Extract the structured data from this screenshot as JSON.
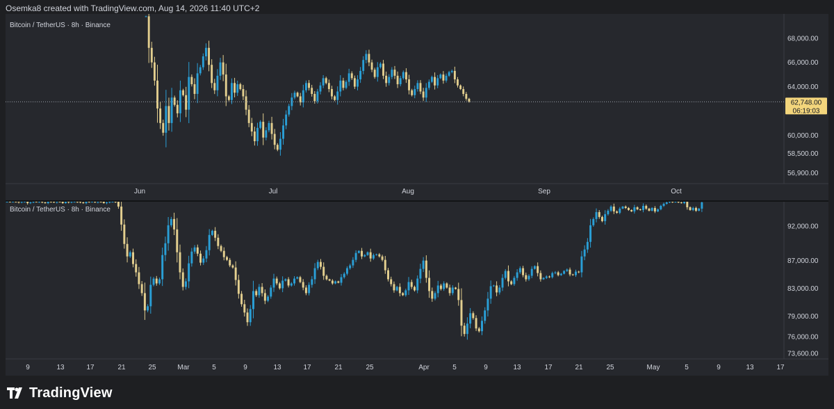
{
  "header": {
    "credit": "Osemka8 created with TradingView.com, Aug 14, 2026 11:40 UTC+2"
  },
  "footer": {
    "brand": "TradingView",
    "logo_icon": "tradingview-logo-icon"
  },
  "colors": {
    "up": "#2a9fd6",
    "down": "#e3cf8f",
    "bg": "#26282d",
    "axis_text": "#d1d4dc",
    "price_tag": "#f3d57c"
  },
  "chart_data": [
    {
      "type": "candlestick",
      "title": "Bitcoin / TetherUS · 8h · Binance",
      "y_ticks": [
        "68,000.00",
        "66,000.00",
        "64,000.00",
        "60,000.00",
        "58,500.00",
        "56,900.00"
      ],
      "y_tick_values": [
        68000,
        66000,
        64000,
        60000,
        58500,
        56900
      ],
      "ylim": [
        56000,
        70000
      ],
      "x_ticks": [
        "Jun",
        "Jul",
        "Aug",
        "Sep",
        "Oct"
      ],
      "last_price": "62,748.00",
      "countdown": "06:19:03",
      "last_value": 62748,
      "closes": [
        69800,
        67200,
        66000,
        64500,
        62200,
        61000,
        60200,
        62400,
        61000,
        63100,
        62500,
        61800,
        63700,
        63300,
        62100,
        64800,
        64200,
        63400,
        65100,
        65600,
        66500,
        67200,
        65800,
        64300,
        63700,
        64900,
        66000,
        65000,
        63200,
        62900,
        64300,
        63500,
        64200,
        63800,
        63200,
        62100,
        61000,
        60300,
        59500,
        60600,
        61100,
        59800,
        60400,
        61000,
        60100,
        59200,
        58800,
        59700,
        60800,
        61700,
        62400,
        63100,
        63500,
        63200,
        62700,
        63700,
        64300,
        63900,
        63400,
        62800,
        63600,
        64100,
        64700,
        64300,
        63800,
        63200,
        62900,
        63600,
        64500,
        63900,
        64400,
        65100,
        64700,
        64000,
        64600,
        65300,
        66200,
        66700,
        66000,
        65400,
        64800,
        65600,
        65900,
        64900,
        64300,
        64800,
        65400,
        64900,
        64200,
        64700,
        65200,
        64600,
        63700,
        63300,
        63800,
        64300,
        63600,
        63100,
        63900,
        64400,
        64800,
        64100,
        64700,
        65000,
        64500,
        64900,
        65200,
        65300,
        64600,
        64100,
        63800,
        63400,
        63000,
        62748
      ]
    },
    {
      "type": "candlestick",
      "title": "Bitcoin / TetherUS · 8h · Binance",
      "y_ticks": [
        "92,000.00",
        "87,000.00",
        "83,000.00",
        "79,000.00",
        "76,000.00",
        "73,600.00"
      ],
      "y_tick_values": [
        92000,
        87000,
        83000,
        79000,
        76000,
        73600
      ],
      "ylim": [
        72800,
        95500
      ],
      "x_ticks": [
        "9",
        "13",
        "17",
        "21",
        "25",
        "Mar",
        "5",
        "9",
        "13",
        "17",
        "21",
        "25",
        "Apr",
        "5",
        "9",
        "13",
        "17",
        "21",
        "25",
        "May",
        "5",
        "9",
        "13",
        "17"
      ],
      "closes": [
        95800,
        95700,
        95900,
        95500,
        95400,
        95600,
        95700,
        95300,
        95400,
        95600,
        95500,
        95700,
        95400,
        95300,
        95600,
        95500,
        95400,
        95700,
        95600,
        95300,
        95500,
        95400,
        95600,
        95700,
        95500,
        95400,
        95300,
        95600,
        95500,
        95700,
        95400,
        95600,
        95500,
        95300,
        95400,
        95600,
        95700,
        95500,
        94800,
        92200,
        89400,
        87600,
        88200,
        86500,
        85300,
        83600,
        82300,
        79800,
        80400,
        83500,
        84400,
        83700,
        84300,
        87800,
        89500,
        92100,
        93000,
        91500,
        88200,
        85300,
        83200,
        84000,
        86600,
        88300,
        88900,
        88000,
        86700,
        87300,
        88500,
        90700,
        91300,
        90300,
        89100,
        88400,
        87500,
        87100,
        86300,
        86000,
        84200,
        82200,
        80700,
        79500,
        78100,
        80000,
        82600,
        82000,
        83200,
        82300,
        81200,
        81800,
        83100,
        84400,
        83700,
        83000,
        84100,
        84300,
        83400,
        83700,
        84400,
        84600,
        83900,
        83100,
        82300,
        83500,
        84300,
        85900,
        86800,
        86100,
        84800,
        84300,
        84100,
        83700,
        84000,
        83800,
        84600,
        85100,
        85900,
        86300,
        87100,
        88100,
        88400,
        87600,
        87800,
        88200,
        87300,
        87800,
        87900,
        87600,
        87100,
        85600,
        84300,
        83600,
        82700,
        83200,
        82300,
        82000,
        82700,
        83900,
        83200,
        82700,
        84400,
        85800,
        87000,
        84500,
        82600,
        81500,
        82300,
        83400,
        82900,
        83700,
        83100,
        82300,
        83100,
        82900,
        81300,
        77600,
        76400,
        77900,
        79400,
        78700,
        77200,
        76800,
        78300,
        79800,
        81500,
        83300,
        83400,
        82400,
        83100,
        84500,
        85500,
        84000,
        83600,
        84500,
        85300,
        85900,
        84900,
        84300,
        84800,
        85800,
        86200,
        85200,
        84300,
        84500,
        84700,
        84600,
        85200,
        85300,
        84900,
        85100,
        85500,
        85700,
        85000,
        84900,
        85400,
        85300,
        87600,
        88600,
        89700,
        92100,
        93000,
        94000,
        93300,
        92700,
        93700,
        94200,
        94800,
        94100,
        93900,
        94500,
        94800,
        94600,
        94300,
        94100,
        94700,
        94400,
        94300,
        94900,
        94500,
        94200,
        94600,
        94100,
        94400,
        94900,
        95200,
        95400,
        95600,
        95500,
        95700,
        95400,
        95300,
        95600,
        94700,
        94300,
        94600,
        94200,
        94500,
        95400
      ]
    }
  ]
}
